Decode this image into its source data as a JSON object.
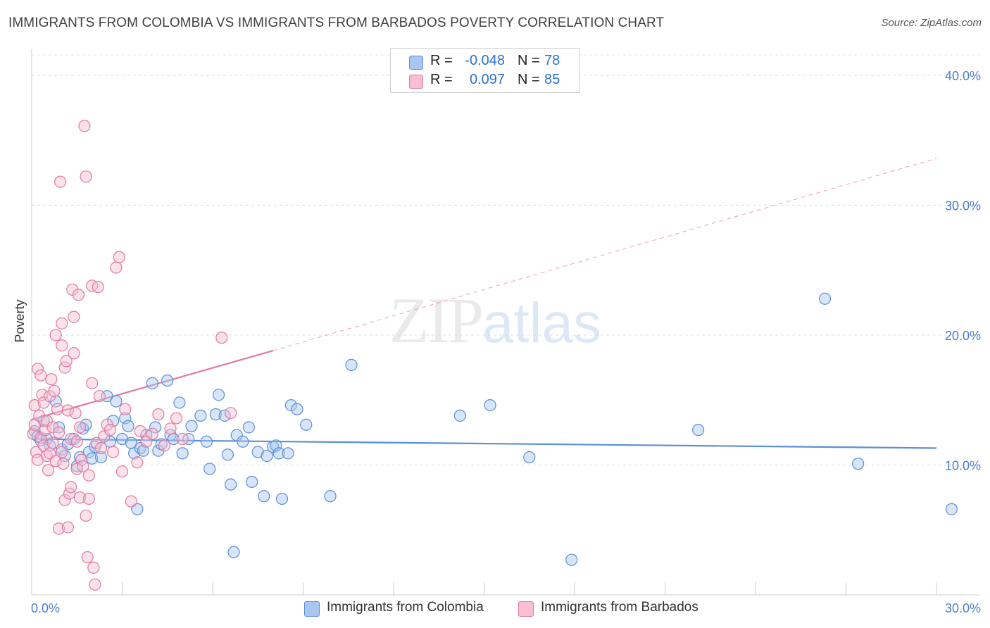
{
  "title": "IMMIGRANTS FROM COLOMBIA VS IMMIGRANTS FROM BARBADOS POVERTY CORRELATION CHART",
  "source": "Source: ZipAtlas.com",
  "watermark": {
    "zip": "ZIP",
    "atlas": "atlas"
  },
  "legend": {
    "rows": [
      {
        "r_label": "R =",
        "r_value": "-0.048",
        "n_label": "N =",
        "n_value": "78",
        "color": "#a9c6f0",
        "border": "#5b8fd8"
      },
      {
        "r_label": "R =",
        "r_value": "0.097",
        "n_label": "N =",
        "n_value": "85",
        "color": "#f7bfd1",
        "border": "#e07aa0"
      }
    ]
  },
  "bottom_legend": [
    {
      "label": "Immigrants from Colombia",
      "color": "#a9c6f0",
      "border": "#5b8fd8"
    },
    {
      "label": "Immigrants from Barbados",
      "color": "#f7bfd1",
      "border": "#e07aa0"
    }
  ],
  "chart_data": {
    "type": "scatter",
    "title": "IMMIGRANTS FROM COLOMBIA VS IMMIGRANTS FROM BARBADOS POVERTY CORRELATION CHART",
    "xlabel": "",
    "ylabel": "Poverty",
    "xlim": [
      0,
      30
    ],
    "ylim": [
      0,
      42
    ],
    "x_tick_labels": [
      "0.0%",
      "30.0%"
    ],
    "y_ticks": [
      10,
      20,
      30,
      40
    ],
    "y_tick_labels": [
      "10.0%",
      "20.0%",
      "30.0%",
      "40.0%"
    ],
    "grid": true,
    "legend_position": "top-center",
    "series": [
      {
        "name": "Immigrants from Colombia",
        "color": "#5b8fd8",
        "fill": "rgba(169,198,240,0.45)",
        "trend": {
          "x": [
            0,
            30
          ],
          "y": [
            12.0,
            11.3
          ],
          "style": "solid"
        },
        "points": [
          [
            0.1,
            12.6
          ],
          [
            0.2,
            12.2
          ],
          [
            0.3,
            11.9
          ],
          [
            0.4,
            13.4
          ],
          [
            0.5,
            12.0
          ],
          [
            0.6,
            11.5
          ],
          [
            0.8,
            14.9
          ],
          [
            0.9,
            12.9
          ],
          [
            1.0,
            11.2
          ],
          [
            1.1,
            10.7
          ],
          [
            1.2,
            11.6
          ],
          [
            1.4,
            12.0
          ],
          [
            1.5,
            9.9
          ],
          [
            1.6,
            10.6
          ],
          [
            1.7,
            12.8
          ],
          [
            1.8,
            13.1
          ],
          [
            1.9,
            11.0
          ],
          [
            2.0,
            10.5
          ],
          [
            2.1,
            11.4
          ],
          [
            2.3,
            10.6
          ],
          [
            2.5,
            15.3
          ],
          [
            2.6,
            11.8
          ],
          [
            2.7,
            13.4
          ],
          [
            2.8,
            14.9
          ],
          [
            3.0,
            12.0
          ],
          [
            3.1,
            13.6
          ],
          [
            3.2,
            13.0
          ],
          [
            3.3,
            11.7
          ],
          [
            3.4,
            10.9
          ],
          [
            3.5,
            6.6
          ],
          [
            3.6,
            11.3
          ],
          [
            3.7,
            11.1
          ],
          [
            3.8,
            12.3
          ],
          [
            4.0,
            16.3
          ],
          [
            4.1,
            12.9
          ],
          [
            4.2,
            11.1
          ],
          [
            4.3,
            11.6
          ],
          [
            4.5,
            16.5
          ],
          [
            4.6,
            12.3
          ],
          [
            4.7,
            12.0
          ],
          [
            4.9,
            14.8
          ],
          [
            5.0,
            10.9
          ],
          [
            5.2,
            12.0
          ],
          [
            5.3,
            13.0
          ],
          [
            5.6,
            13.8
          ],
          [
            5.8,
            11.8
          ],
          [
            5.9,
            9.7
          ],
          [
            6.1,
            13.9
          ],
          [
            6.2,
            15.4
          ],
          [
            6.4,
            13.8
          ],
          [
            6.5,
            10.8
          ],
          [
            6.6,
            8.5
          ],
          [
            6.7,
            3.3
          ],
          [
            6.8,
            12.3
          ],
          [
            7.0,
            11.8
          ],
          [
            7.2,
            12.9
          ],
          [
            7.3,
            8.7
          ],
          [
            7.5,
            11.0
          ],
          [
            7.7,
            7.6
          ],
          [
            7.8,
            10.7
          ],
          [
            8.0,
            11.4
          ],
          [
            8.1,
            11.5
          ],
          [
            8.2,
            10.9
          ],
          [
            8.3,
            7.4
          ],
          [
            8.5,
            10.9
          ],
          [
            8.6,
            14.6
          ],
          [
            8.8,
            14.3
          ],
          [
            9.1,
            13.1
          ],
          [
            9.9,
            7.6
          ],
          [
            10.6,
            17.7
          ],
          [
            14.2,
            13.8
          ],
          [
            15.2,
            14.6
          ],
          [
            16.5,
            10.6
          ],
          [
            17.9,
            2.7
          ],
          [
            22.1,
            12.7
          ],
          [
            26.3,
            22.8
          ],
          [
            27.4,
            10.1
          ],
          [
            30.5,
            6.6
          ]
        ]
      },
      {
        "name": "Immigrants from Barbados",
        "color": "#e07aa0",
        "fill": "rgba(247,191,209,0.45)",
        "trend": {
          "x": [
            0,
            8.0
          ],
          "y": [
            13.5,
            18.8
          ],
          "style": "solid",
          "extended": {
            "x": [
              8.0,
              30
            ],
            "y": [
              18.8,
              33.6
            ],
            "style": "dashed"
          }
        },
        "points": [
          [
            0.05,
            12.4
          ],
          [
            0.1,
            14.6
          ],
          [
            0.1,
            13.1
          ],
          [
            0.15,
            11.0
          ],
          [
            0.2,
            10.4
          ],
          [
            0.2,
            17.4
          ],
          [
            0.25,
            13.8
          ],
          [
            0.3,
            16.9
          ],
          [
            0.3,
            12.1
          ],
          [
            0.35,
            15.4
          ],
          [
            0.4,
            14.8
          ],
          [
            0.4,
            11.5
          ],
          [
            0.45,
            12.7
          ],
          [
            0.5,
            10.7
          ],
          [
            0.5,
            13.4
          ],
          [
            0.55,
            9.6
          ],
          [
            0.6,
            15.3
          ],
          [
            0.6,
            10.9
          ],
          [
            0.65,
            16.6
          ],
          [
            0.7,
            12.9
          ],
          [
            0.7,
            11.7
          ],
          [
            0.75,
            15.7
          ],
          [
            0.8,
            20.0
          ],
          [
            0.8,
            10.3
          ],
          [
            0.85,
            14.3
          ],
          [
            0.9,
            5.1
          ],
          [
            0.9,
            12.5
          ],
          [
            0.95,
            31.8
          ],
          [
            1.0,
            20.9
          ],
          [
            1.0,
            19.2
          ],
          [
            1.0,
            11.0
          ],
          [
            1.05,
            10.1
          ],
          [
            1.1,
            7.3
          ],
          [
            1.1,
            17.5
          ],
          [
            1.15,
            18.0
          ],
          [
            1.2,
            14.2
          ],
          [
            1.2,
            5.2
          ],
          [
            1.25,
            7.8
          ],
          [
            1.3,
            8.3
          ],
          [
            1.3,
            12.0
          ],
          [
            1.35,
            23.5
          ],
          [
            1.4,
            21.4
          ],
          [
            1.4,
            18.6
          ],
          [
            1.45,
            14.0
          ],
          [
            1.5,
            11.8
          ],
          [
            1.5,
            9.7
          ],
          [
            1.55,
            23.1
          ],
          [
            1.6,
            12.9
          ],
          [
            1.6,
            7.5
          ],
          [
            1.65,
            10.4
          ],
          [
            1.7,
            9.9
          ],
          [
            1.75,
            36.1
          ],
          [
            1.8,
            32.2
          ],
          [
            1.8,
            6.1
          ],
          [
            1.85,
            2.9
          ],
          [
            1.9,
            7.4
          ],
          [
            1.9,
            9.2
          ],
          [
            2.0,
            23.8
          ],
          [
            2.0,
            16.3
          ],
          [
            2.05,
            2.1
          ],
          [
            2.1,
            0.8
          ],
          [
            2.15,
            11.7
          ],
          [
            2.2,
            23.7
          ],
          [
            2.25,
            15.3
          ],
          [
            2.3,
            11.3
          ],
          [
            2.4,
            12.2
          ],
          [
            2.5,
            13.1
          ],
          [
            2.6,
            12.7
          ],
          [
            2.7,
            11.0
          ],
          [
            2.8,
            25.2
          ],
          [
            2.9,
            26.0
          ],
          [
            3.0,
            9.5
          ],
          [
            3.1,
            14.3
          ],
          [
            3.3,
            7.2
          ],
          [
            3.5,
            10.2
          ],
          [
            3.6,
            12.6
          ],
          [
            3.8,
            11.8
          ],
          [
            4.0,
            12.4
          ],
          [
            4.2,
            13.9
          ],
          [
            4.4,
            11.5
          ],
          [
            4.6,
            12.8
          ],
          [
            4.8,
            13.6
          ],
          [
            5.0,
            12.0
          ],
          [
            6.3,
            19.8
          ],
          [
            6.6,
            14.0
          ]
        ]
      }
    ]
  }
}
